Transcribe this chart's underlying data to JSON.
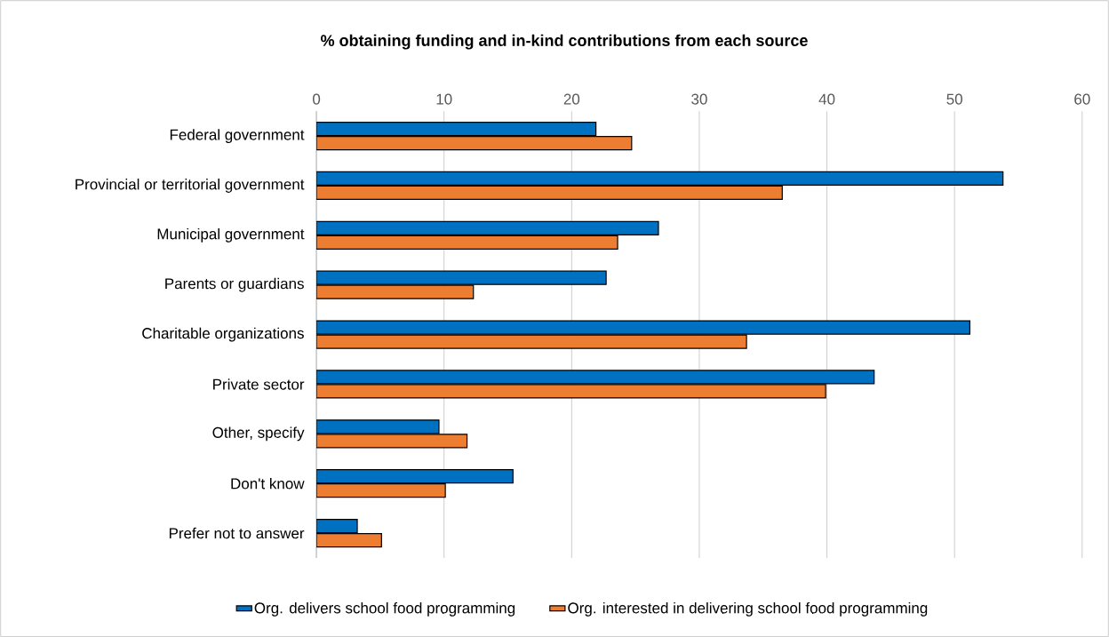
{
  "chart_data": {
    "type": "bar",
    "orientation": "horizontal",
    "title": "% obtaining funding and in-kind contributions from each source",
    "categories": [
      "Federal government",
      "Provincial or territorial government",
      "Municipal government",
      "Parents or guardians",
      "Charitable organizations",
      "Private sector",
      "Other, specify",
      "Don't know",
      "Prefer not to answer"
    ],
    "series": [
      {
        "name": "Org. delivers school food programming",
        "color": "#0070c0",
        "values": [
          21.9,
          53.8,
          26.8,
          22.7,
          51.2,
          43.7,
          9.6,
          15.4,
          3.2
        ]
      },
      {
        "name": "Org. interested in delivering school food programming",
        "color": "#ed7d31",
        "values": [
          24.7,
          36.5,
          23.6,
          12.3,
          33.7,
          39.9,
          11.8,
          10.1,
          5.1
        ]
      }
    ],
    "xlim": [
      0,
      60
    ],
    "xticks": [
      0,
      10,
      20,
      30,
      40,
      50,
      60
    ],
    "grid": "x",
    "legend": "bottom"
  }
}
